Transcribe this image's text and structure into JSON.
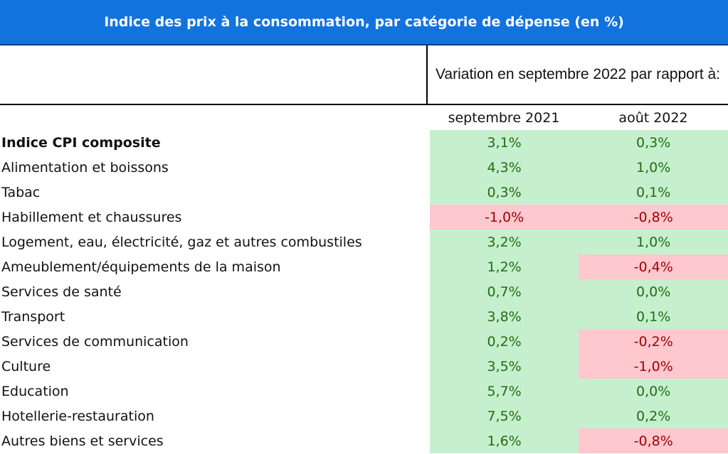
{
  "title": "Indice des prix à la consommation, par catégorie de dépense (en %)",
  "header": {
    "variation_label": "Variation en septembre 2022 par rapport à:",
    "col1": "septembre 2021",
    "col2": "août 2022"
  },
  "rows": [
    {
      "label": "Indice CPI composite",
      "v1": "3,1%",
      "v2": "0,3%",
      "bold": true
    },
    {
      "label": "Alimentation et boissons",
      "v1": "4,3%",
      "v2": "1,0%"
    },
    {
      "label": "Tabac",
      "v1": "0,3%",
      "v2": "0,1%"
    },
    {
      "label": "Habillement et chaussures",
      "v1": "-1,0%",
      "v2": "-0,8%"
    },
    {
      "label": "Logement, eau, électricité, gaz et autres combustiles",
      "v1": "3,2%",
      "v2": "1,0%"
    },
    {
      "label": "Ameublement/équipements de la maison",
      "v1": "1,2%",
      "v2": "-0,4%"
    },
    {
      "label": "Services de santé",
      "v1": "0,7%",
      "v2": "0,0%"
    },
    {
      "label": "Transport",
      "v1": "3,8%",
      "v2": "0,1%"
    },
    {
      "label": "Services de communication",
      "v1": "0,2%",
      "v2": "-0,2%"
    },
    {
      "label": "Culture",
      "v1": "3,5%",
      "v2": "-1,0%"
    },
    {
      "label": "Education",
      "v1": "5,7%",
      "v2": "0,0%"
    },
    {
      "label": "Hotellerie-restauration",
      "v1": "7,5%",
      "v2": "0,2%"
    },
    {
      "label": "Autres biens et services",
      "v1": "1,6%",
      "v2": "-0,8%"
    }
  ],
  "colors": {
    "title_bg": "#1273de",
    "positive_bg": "#c6efce",
    "positive_text": "#1f6e12",
    "negative_bg": "#ffc7ce",
    "negative_text": "#9c0006"
  }
}
